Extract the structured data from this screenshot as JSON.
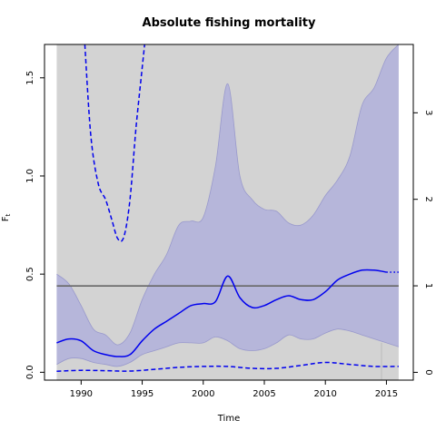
{
  "chart_data": {
    "type": "line",
    "title": "Absolute fishing mortality",
    "xlabel": "Time",
    "ylabel": "F",
    "ylabel_subscript": "t",
    "xlim": [
      1987.0,
      2017.2
    ],
    "ylim": [
      -0.04,
      1.67
    ],
    "y2lim": [
      -0.09,
      3.79
    ],
    "x_ticks": [
      1990,
      1995,
      2000,
      2005,
      2010,
      2015
    ],
    "y_ticks": [
      "0.0",
      "0.5",
      "1.0",
      "1.5"
    ],
    "y_tick_values": [
      0.0,
      0.5,
      1.0,
      1.5
    ],
    "y2_ticks": [
      "0",
      "1",
      "2",
      "3"
    ],
    "y2_tick_values": [
      0,
      1,
      2,
      3
    ],
    "background_range": [
      1988,
      2016
    ],
    "last_observation_year": 2014.6,
    "reference_line": {
      "value": 0.44,
      "color": "#666666"
    },
    "colors": {
      "fill": "#aaaadd",
      "fill_opacity": 0.7,
      "line": "#0000ee",
      "background": "#d3d3d3"
    },
    "series": [
      {
        "role": "estimate",
        "style": "solid",
        "x": [
          1988,
          1989,
          1990,
          1991,
          1992,
          1993,
          1994,
          1995,
          1996,
          1997,
          1998,
          1999,
          2000,
          2001,
          2002,
          2003,
          2004,
          2005,
          2006,
          2007,
          2008,
          2009,
          2010,
          2011,
          2012,
          2013,
          2014,
          2015
        ],
        "values": [
          0.15,
          0.17,
          0.16,
          0.11,
          0.09,
          0.08,
          0.09,
          0.16,
          0.22,
          0.26,
          0.3,
          0.34,
          0.35,
          0.36,
          0.49,
          0.38,
          0.33,
          0.34,
          0.37,
          0.39,
          0.37,
          0.37,
          0.41,
          0.47,
          0.5,
          0.52,
          0.52,
          0.51
        ]
      },
      {
        "role": "forecast",
        "style": "dotted",
        "x": [
          2015,
          2016
        ],
        "values": [
          0.51,
          0.51
        ]
      },
      {
        "role": "upper-band",
        "style": "fill-edge",
        "x": [
          1988,
          1989,
          1990,
          1991,
          1992,
          1993,
          1994,
          1995,
          1996,
          1997,
          1998,
          1999,
          2000,
          2001,
          2002,
          2003,
          2004,
          2005,
          2006,
          2007,
          2008,
          2009,
          2010,
          2011,
          2012,
          2013,
          2014,
          2015,
          2016
        ],
        "values": [
          0.5,
          0.45,
          0.34,
          0.22,
          0.19,
          0.14,
          0.2,
          0.37,
          0.5,
          0.6,
          0.75,
          0.77,
          0.79,
          1.05,
          1.47,
          1.0,
          0.88,
          0.83,
          0.82,
          0.76,
          0.75,
          0.8,
          0.9,
          0.98,
          1.1,
          1.36,
          1.45,
          1.6,
          1.67
        ]
      },
      {
        "role": "lower-band",
        "style": "fill-edge",
        "x": [
          1988,
          1989,
          1990,
          1991,
          1992,
          1993,
          1994,
          1995,
          1996,
          1997,
          1998,
          1999,
          2000,
          2001,
          2002,
          2003,
          2004,
          2005,
          2006,
          2007,
          2008,
          2009,
          2010,
          2011,
          2012,
          2013,
          2014,
          2015,
          2016
        ],
        "values": [
          0.04,
          0.07,
          0.07,
          0.05,
          0.04,
          0.03,
          0.05,
          0.09,
          0.11,
          0.13,
          0.15,
          0.15,
          0.15,
          0.18,
          0.16,
          0.12,
          0.11,
          0.12,
          0.15,
          0.19,
          0.17,
          0.17,
          0.2,
          0.22,
          0.21,
          0.19,
          0.17,
          0.15,
          0.13
        ]
      },
      {
        "role": "dashed-upper",
        "style": "dashed",
        "x": [
          1990.3,
          1990.8,
          1991.4,
          1992.0,
          1992.5,
          1993.0,
          1993.5,
          1994.0,
          1994.5,
          1995.0,
          1995.2
        ],
        "values": [
          1.67,
          1.2,
          0.96,
          0.88,
          0.78,
          0.68,
          0.69,
          0.88,
          1.25,
          1.55,
          1.67
        ]
      },
      {
        "role": "dashed-lower",
        "style": "dashed",
        "x": [
          1988,
          1990,
          1992,
          1994,
          1996,
          1998,
          2000,
          2002,
          2004,
          2006,
          2008,
          2010,
          2012,
          2014,
          2016
        ],
        "values": [
          0.005,
          0.01,
          0.008,
          0.006,
          0.015,
          0.025,
          0.03,
          0.03,
          0.02,
          0.02,
          0.035,
          0.05,
          0.04,
          0.03,
          0.03
        ]
      }
    ]
  }
}
